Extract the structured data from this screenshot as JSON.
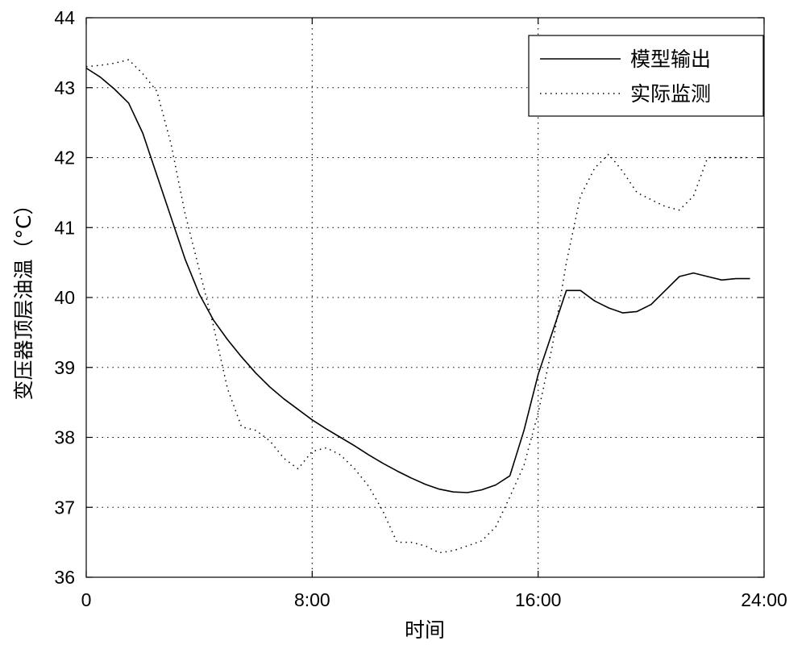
{
  "chart_data": {
    "type": "line",
    "xlabel": "时间",
    "ylabel": "变压器顶层油温（°C）",
    "xlim": [
      0,
      24
    ],
    "ylim": [
      36,
      44
    ],
    "x_ticks": [
      0,
      8,
      16,
      24
    ],
    "x_tick_labels": [
      "0",
      "8:00",
      "16:00",
      "24:00"
    ],
    "y_ticks": [
      36,
      37,
      38,
      39,
      40,
      41,
      42,
      43,
      44
    ],
    "y_tick_labels": [
      "36",
      "37",
      "38",
      "39",
      "40",
      "41",
      "42",
      "43",
      "44"
    ],
    "grid": true,
    "legend_position": "top-right",
    "series": [
      {
        "name": "模型输出",
        "style": "solid",
        "color": "#000000",
        "x": [
          0,
          0.5,
          1.0,
          1.5,
          2.0,
          2.5,
          3.0,
          3.5,
          4.0,
          4.5,
          5.0,
          5.5,
          6.0,
          6.5,
          7.0,
          7.5,
          8.0,
          8.5,
          9.0,
          9.5,
          10.0,
          10.5,
          11.0,
          11.5,
          12.0,
          12.5,
          13.0,
          13.5,
          14.0,
          14.5,
          15.0,
          15.5,
          16.0,
          16.5,
          17.0,
          17.5,
          18.0,
          18.5,
          19.0,
          19.5,
          20.0,
          20.5,
          21.0,
          21.5,
          22.0,
          22.5,
          23.0,
          23.5
        ],
        "y": [
          43.28,
          43.15,
          42.98,
          42.78,
          42.35,
          41.75,
          41.15,
          40.55,
          40.05,
          39.68,
          39.4,
          39.15,
          38.92,
          38.72,
          38.55,
          38.4,
          38.25,
          38.12,
          38.0,
          37.88,
          37.75,
          37.63,
          37.52,
          37.42,
          37.33,
          37.26,
          37.22,
          37.21,
          37.25,
          37.32,
          37.45,
          38.1,
          38.9,
          39.5,
          40.1,
          40.1,
          39.95,
          39.85,
          39.78,
          39.8,
          39.9,
          40.1,
          40.3,
          40.35,
          40.3,
          40.25,
          40.27,
          40.27
        ]
      },
      {
        "name": "实际监测",
        "style": "dotted",
        "color": "#000000",
        "x": [
          0,
          0.5,
          1.0,
          1.5,
          2.0,
          2.5,
          3.0,
          3.5,
          4.0,
          4.5,
          5.0,
          5.5,
          6.0,
          6.5,
          7.0,
          7.5,
          8.0,
          8.5,
          9.0,
          9.5,
          10.0,
          10.5,
          11.0,
          11.5,
          12.0,
          12.5,
          13.0,
          13.5,
          14.0,
          14.5,
          15.0,
          15.5,
          16.0,
          16.5,
          17.0,
          17.5,
          18.0,
          18.5,
          19.0,
          19.5,
          20.0,
          20.5,
          21.0,
          21.5,
          22.0,
          22.5,
          23.0,
          23.5
        ],
        "y": [
          43.3,
          43.32,
          43.35,
          43.4,
          43.2,
          42.95,
          42.2,
          41.2,
          40.4,
          39.6,
          38.7,
          38.15,
          38.1,
          37.95,
          37.7,
          37.55,
          37.8,
          37.85,
          37.75,
          37.55,
          37.3,
          36.95,
          36.5,
          36.5,
          36.45,
          36.35,
          36.38,
          36.45,
          36.52,
          36.72,
          37.15,
          37.6,
          38.35,
          39.3,
          40.5,
          41.45,
          41.85,
          42.05,
          41.8,
          41.5,
          41.4,
          41.3,
          41.25,
          41.45,
          42.0,
          42.0,
          42.0,
          42.0
        ]
      }
    ]
  }
}
